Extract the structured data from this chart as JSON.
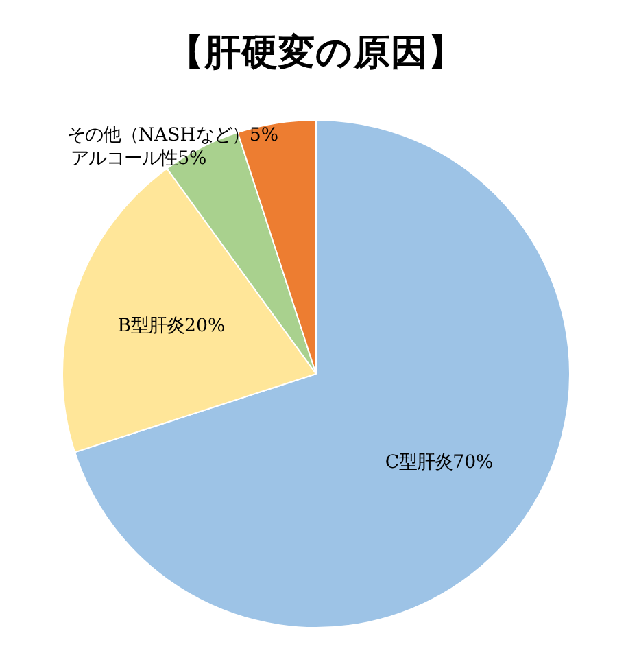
{
  "chart_data": {
    "type": "pie",
    "title": "【肝硬変の原因】",
    "categories": [
      "C型肝炎",
      "B型肝炎",
      "アルコール性",
      "その他（NASHなど）"
    ],
    "values": [
      70,
      20,
      5,
      5
    ],
    "value_labels": [
      "70%",
      "20%",
      "5%",
      "5%"
    ],
    "colors": [
      "#9dc3e6",
      "#ffe699",
      "#a9d18e",
      "#ed7d31"
    ],
    "legend": false
  }
}
